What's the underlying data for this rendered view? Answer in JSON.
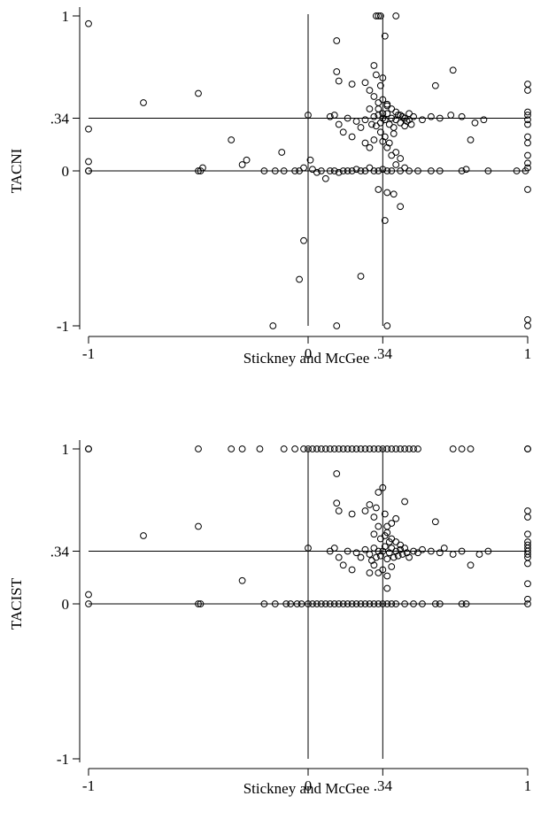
{
  "chart_data": [
    {
      "type": "scatter",
      "title": "",
      "xlabel": "Stickney and McGee",
      "ylabel": "TACNI",
      "xlim": [
        -1,
        1
      ],
      "ylim": [
        -1,
        1
      ],
      "x_ticks": [
        -1,
        0,
        0.34,
        1
      ],
      "x_tick_labels": [
        "-1",
        "0",
        ".34",
        "1"
      ],
      "y_ticks": [
        -1,
        0,
        0.34,
        1
      ],
      "y_tick_labels": [
        "-1",
        "0",
        ".34",
        "1"
      ],
      "reference_lines": {
        "x": [
          0,
          0.34
        ],
        "y": [
          0,
          0.34
        ]
      },
      "grid": false,
      "marker": "hollow-circle",
      "points": [
        [
          -1,
          0.95
        ],
        [
          -1,
          0.27
        ],
        [
          -1,
          0.06
        ],
        [
          -1,
          0
        ],
        [
          -1,
          0
        ],
        [
          -0.75,
          0.44
        ],
        [
          -0.5,
          0.5
        ],
        [
          -0.35,
          0.2
        ],
        [
          -0.3,
          0.04
        ],
        [
          -0.28,
          0.07
        ],
        [
          -0.5,
          0
        ],
        [
          -0.49,
          0
        ],
        [
          -0.48,
          0.02
        ],
        [
          -0.2,
          0
        ],
        [
          -0.15,
          0
        ],
        [
          -0.12,
          0.12
        ],
        [
          -0.11,
          0
        ],
        [
          -0.06,
          0
        ],
        [
          -0.04,
          0
        ],
        [
          -0.02,
          0.02
        ],
        [
          0,
          0.36
        ],
        [
          0.01,
          0.07
        ],
        [
          0.02,
          0.01
        ],
        [
          0.04,
          -0.01
        ],
        [
          0.06,
          0
        ],
        [
          0.08,
          -0.05
        ],
        [
          0.1,
          0
        ],
        [
          0.12,
          0
        ],
        [
          0.14,
          -0.01
        ],
        [
          0.16,
          0
        ],
        [
          0.18,
          0
        ],
        [
          0.2,
          0
        ],
        [
          0.22,
          0.01
        ],
        [
          0.24,
          0
        ],
        [
          0.26,
          0
        ],
        [
          0.28,
          0.02
        ],
        [
          0.3,
          0
        ],
        [
          0.32,
          0
        ],
        [
          0.34,
          0.01
        ],
        [
          0.36,
          0
        ],
        [
          0.38,
          0
        ],
        [
          0.4,
          0.04
        ],
        [
          0.42,
          0
        ],
        [
          0.44,
          0.02
        ],
        [
          0.46,
          0
        ],
        [
          0.5,
          0
        ],
        [
          0.56,
          0
        ],
        [
          0.6,
          0
        ],
        [
          0.7,
          0
        ],
        [
          0.72,
          0.01
        ],
        [
          0.82,
          0
        ],
        [
          0.95,
          0
        ],
        [
          0.99,
          0
        ],
        [
          1,
          0.02
        ],
        [
          1,
          0.05
        ],
        [
          1,
          0.1
        ],
        [
          1,
          -0.12
        ],
        [
          1,
          0.3
        ],
        [
          1,
          0.33
        ],
        [
          1,
          0.36
        ],
        [
          1,
          0.22
        ],
        [
          1,
          0.38
        ],
        [
          1,
          0.52
        ],
        [
          1,
          0.56
        ],
        [
          1,
          0.18
        ],
        [
          1,
          -0.96
        ],
        [
          1,
          -1
        ],
        [
          -0.02,
          -0.45
        ],
        [
          -0.04,
          -0.7
        ],
        [
          0.13,
          -1
        ],
        [
          0.24,
          -0.68
        ],
        [
          -0.16,
          -1
        ],
        [
          0.36,
          -1
        ],
        [
          0.35,
          -0.32
        ],
        [
          0.42,
          -0.23
        ],
        [
          0.36,
          -0.14
        ],
        [
          0.32,
          -0.12
        ],
        [
          0.39,
          -0.15
        ],
        [
          0.31,
          1
        ],
        [
          0.32,
          1
        ],
        [
          0.33,
          1
        ],
        [
          0.4,
          1
        ],
        [
          0.35,
          0.87
        ],
        [
          0.13,
          0.84
        ],
        [
          0.34,
          0.6
        ],
        [
          0.33,
          0.55
        ],
        [
          0.31,
          0.62
        ],
        [
          0.3,
          0.68
        ],
        [
          0.28,
          0.52
        ],
        [
          0.26,
          0.57
        ],
        [
          0.2,
          0.56
        ],
        [
          0.13,
          0.64
        ],
        [
          0.14,
          0.58
        ],
        [
          0.34,
          0.46
        ],
        [
          0.32,
          0.44
        ],
        [
          0.3,
          0.48
        ],
        [
          0.36,
          0.42
        ],
        [
          0.38,
          0.4
        ],
        [
          0.4,
          0.38
        ],
        [
          0.42,
          0.36
        ],
        [
          0.44,
          0.34
        ],
        [
          0.46,
          0.33
        ],
        [
          0.48,
          0.35
        ],
        [
          0.52,
          0.33
        ],
        [
          0.56,
          0.35
        ],
        [
          0.6,
          0.34
        ],
        [
          0.65,
          0.36
        ],
        [
          0.7,
          0.35
        ],
        [
          0.76,
          0.31
        ],
        [
          0.8,
          0.33
        ],
        [
          0.58,
          0.55
        ],
        [
          0.66,
          0.65
        ],
        [
          0.74,
          0.2
        ],
        [
          0.1,
          0.35
        ],
        [
          0.12,
          0.36
        ],
        [
          0.14,
          0.3
        ],
        [
          0.16,
          0.25
        ],
        [
          0.18,
          0.34
        ],
        [
          0.2,
          0.22
        ],
        [
          0.22,
          0.32
        ],
        [
          0.24,
          0.28
        ],
        [
          0.26,
          0.33
        ],
        [
          0.28,
          0.4
        ],
        [
          0.29,
          0.3
        ],
        [
          0.3,
          0.35
        ],
        [
          0.31,
          0.29
        ],
        [
          0.32,
          0.36
        ],
        [
          0.33,
          0.31
        ],
        [
          0.34,
          0.34
        ],
        [
          0.35,
          0.33
        ],
        [
          0.36,
          0.37
        ],
        [
          0.37,
          0.3
        ],
        [
          0.38,
          0.34
        ],
        [
          0.39,
          0.28
        ],
        [
          0.4,
          0.33
        ],
        [
          0.41,
          0.36
        ],
        [
          0.42,
          0.31
        ],
        [
          0.43,
          0.35
        ],
        [
          0.44,
          0.29
        ],
        [
          0.45,
          0.32
        ],
        [
          0.46,
          0.37
        ],
        [
          0.47,
          0.3
        ],
        [
          0.33,
          0.25
        ],
        [
          0.35,
          0.22
        ],
        [
          0.37,
          0.18
        ],
        [
          0.3,
          0.2
        ],
        [
          0.28,
          0.15
        ],
        [
          0.26,
          0.18
        ],
        [
          0.38,
          0.1
        ],
        [
          0.4,
          0.12
        ],
        [
          0.42,
          0.08
        ],
        [
          0.36,
          0.15
        ],
        [
          0.34,
          0.19
        ],
        [
          0.39,
          0.24
        ],
        [
          0.32,
          0.4
        ],
        [
          0.36,
          0.43
        ],
        [
          0.34,
          0.37
        ]
      ]
    },
    {
      "type": "scatter",
      "title": "",
      "xlabel": "Stickney and McGee",
      "ylabel": "TACIST",
      "xlim": [
        -1,
        1
      ],
      "ylim": [
        -1,
        1
      ],
      "x_ticks": [
        -1,
        0,
        0.34,
        1
      ],
      "x_tick_labels": [
        "-1",
        "0",
        ".34",
        "1"
      ],
      "y_ticks": [
        -1,
        0,
        0.34,
        1
      ],
      "y_tick_labels": [
        "-1",
        "0",
        ".34",
        "1"
      ],
      "reference_lines": {
        "x": [
          0,
          0.34
        ],
        "y": [
          0,
          0.34
        ]
      },
      "grid": false,
      "marker": "hollow-circle",
      "points": [
        [
          -1,
          1
        ],
        [
          -1,
          1
        ],
        [
          -1,
          0.06
        ],
        [
          -1,
          0
        ],
        [
          -0.5,
          1
        ],
        [
          -0.35,
          1
        ],
        [
          -0.3,
          1
        ],
        [
          -0.22,
          1
        ],
        [
          -0.11,
          1
        ],
        [
          -0.06,
          1
        ],
        [
          -0.02,
          1
        ],
        [
          0,
          1
        ],
        [
          0.02,
          1
        ],
        [
          0.04,
          1
        ],
        [
          0.06,
          1
        ],
        [
          0.08,
          1
        ],
        [
          0.1,
          1
        ],
        [
          0.12,
          1
        ],
        [
          0.14,
          1
        ],
        [
          0.16,
          1
        ],
        [
          0.18,
          1
        ],
        [
          0.2,
          1
        ],
        [
          0.22,
          1
        ],
        [
          0.24,
          1
        ],
        [
          0.26,
          1
        ],
        [
          0.28,
          1
        ],
        [
          0.3,
          1
        ],
        [
          0.32,
          1
        ],
        [
          0.34,
          1
        ],
        [
          0.36,
          1
        ],
        [
          0.38,
          1
        ],
        [
          0.4,
          1
        ],
        [
          0.42,
          1
        ],
        [
          0.44,
          1
        ],
        [
          0.46,
          1
        ],
        [
          0.48,
          1
        ],
        [
          0.5,
          1
        ],
        [
          0.66,
          1
        ],
        [
          0.7,
          1
        ],
        [
          0.74,
          1
        ],
        [
          1,
          1
        ],
        [
          1,
          1
        ],
        [
          1,
          0.45
        ],
        [
          1,
          0.4
        ],
        [
          1,
          0.38
        ],
        [
          1,
          0.36
        ],
        [
          1,
          0.34
        ],
        [
          1,
          0.32
        ],
        [
          1,
          0.3
        ],
        [
          1,
          0.26
        ],
        [
          1,
          0.13
        ],
        [
          1,
          0.03
        ],
        [
          1,
          0
        ],
        [
          1,
          0.6
        ],
        [
          1,
          0.56
        ],
        [
          -0.75,
          0.44
        ],
        [
          -0.5,
          0.5
        ],
        [
          -0.3,
          0.15
        ],
        [
          -0.5,
          0
        ],
        [
          -0.49,
          0
        ],
        [
          -0.2,
          0
        ],
        [
          -0.15,
          0
        ],
        [
          -0.1,
          0
        ],
        [
          -0.08,
          0
        ],
        [
          -0.05,
          0
        ],
        [
          -0.03,
          0
        ],
        [
          0,
          0
        ],
        [
          0.02,
          0
        ],
        [
          0.04,
          0
        ],
        [
          0.06,
          0
        ],
        [
          0.08,
          0
        ],
        [
          0.1,
          0
        ],
        [
          0.12,
          0
        ],
        [
          0.14,
          0
        ],
        [
          0.16,
          0
        ],
        [
          0.18,
          0
        ],
        [
          0.2,
          0
        ],
        [
          0.22,
          0
        ],
        [
          0.24,
          0
        ],
        [
          0.26,
          0
        ],
        [
          0.28,
          0
        ],
        [
          0.3,
          0
        ],
        [
          0.32,
          0
        ],
        [
          0.34,
          0
        ],
        [
          0.36,
          0
        ],
        [
          0.38,
          0
        ],
        [
          0.4,
          0
        ],
        [
          0.44,
          0
        ],
        [
          0.48,
          0
        ],
        [
          0.52,
          0
        ],
        [
          0.58,
          0
        ],
        [
          0.6,
          0
        ],
        [
          0.7,
          0
        ],
        [
          0.72,
          0
        ],
        [
          0,
          0.36
        ],
        [
          0.13,
          0.84
        ],
        [
          0.13,
          0.65
        ],
        [
          0.14,
          0.6
        ],
        [
          0.2,
          0.58
        ],
        [
          0.26,
          0.6
        ],
        [
          0.28,
          0.64
        ],
        [
          0.3,
          0.56
        ],
        [
          0.31,
          0.62
        ],
        [
          0.32,
          0.72
        ],
        [
          0.34,
          0.75
        ],
        [
          0.35,
          0.58
        ],
        [
          0.36,
          0.5
        ],
        [
          0.38,
          0.52
        ],
        [
          0.4,
          0.55
        ],
        [
          0.44,
          0.66
        ],
        [
          0.58,
          0.53
        ],
        [
          0.3,
          0.45
        ],
        [
          0.32,
          0.5
        ],
        [
          0.36,
          0.46
        ],
        [
          0.38,
          0.42
        ],
        [
          0.4,
          0.4
        ],
        [
          0.42,
          0.38
        ],
        [
          0.1,
          0.34
        ],
        [
          0.12,
          0.36
        ],
        [
          0.14,
          0.3
        ],
        [
          0.16,
          0.25
        ],
        [
          0.18,
          0.34
        ],
        [
          0.2,
          0.22
        ],
        [
          0.22,
          0.33
        ],
        [
          0.24,
          0.3
        ],
        [
          0.26,
          0.35
        ],
        [
          0.28,
          0.32
        ],
        [
          0.29,
          0.28
        ],
        [
          0.3,
          0.36
        ],
        [
          0.31,
          0.3
        ],
        [
          0.32,
          0.34
        ],
        [
          0.33,
          0.31
        ],
        [
          0.34,
          0.34
        ],
        [
          0.35,
          0.37
        ],
        [
          0.36,
          0.29
        ],
        [
          0.37,
          0.33
        ],
        [
          0.38,
          0.36
        ],
        [
          0.39,
          0.3
        ],
        [
          0.4,
          0.34
        ],
        [
          0.41,
          0.31
        ],
        [
          0.42,
          0.35
        ],
        [
          0.43,
          0.32
        ],
        [
          0.44,
          0.36
        ],
        [
          0.45,
          0.33
        ],
        [
          0.46,
          0.3
        ],
        [
          0.48,
          0.34
        ],
        [
          0.5,
          0.33
        ],
        [
          0.52,
          0.35
        ],
        [
          0.56,
          0.34
        ],
        [
          0.6,
          0.33
        ],
        [
          0.62,
          0.36
        ],
        [
          0.66,
          0.32
        ],
        [
          0.7,
          0.34
        ],
        [
          0.74,
          0.25
        ],
        [
          0.78,
          0.32
        ],
        [
          0.82,
          0.34
        ],
        [
          0.34,
          0.22
        ],
        [
          0.36,
          0.18
        ],
        [
          0.32,
          0.2
        ],
        [
          0.38,
          0.24
        ],
        [
          0.36,
          0.1
        ],
        [
          0.3,
          0.25
        ],
        [
          0.28,
          0.2
        ],
        [
          0.33,
          0.42
        ],
        [
          0.35,
          0.44
        ],
        [
          0.37,
          0.4
        ]
      ]
    }
  ]
}
